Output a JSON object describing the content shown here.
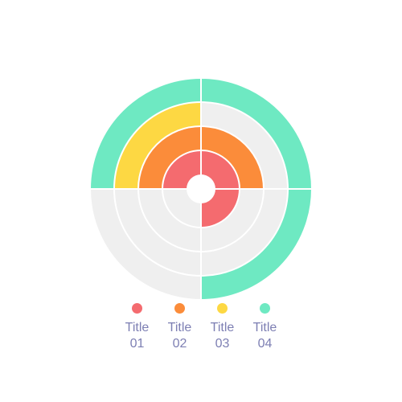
{
  "chart_data": {
    "type": "radial-bar",
    "series": [
      {
        "name": "Title 01",
        "color": "#f46b6f",
        "values": [
          75
        ]
      },
      {
        "name": "Title 02",
        "color": "#fb8c3a",
        "values": [
          50
        ]
      },
      {
        "name": "Title 03",
        "color": "#fdd843",
        "values": [
          25
        ]
      },
      {
        "name": "Title 04",
        "color": "#6ee9c2",
        "values": [
          75
        ]
      }
    ],
    "ylim": [
      0,
      100
    ]
  }
}
